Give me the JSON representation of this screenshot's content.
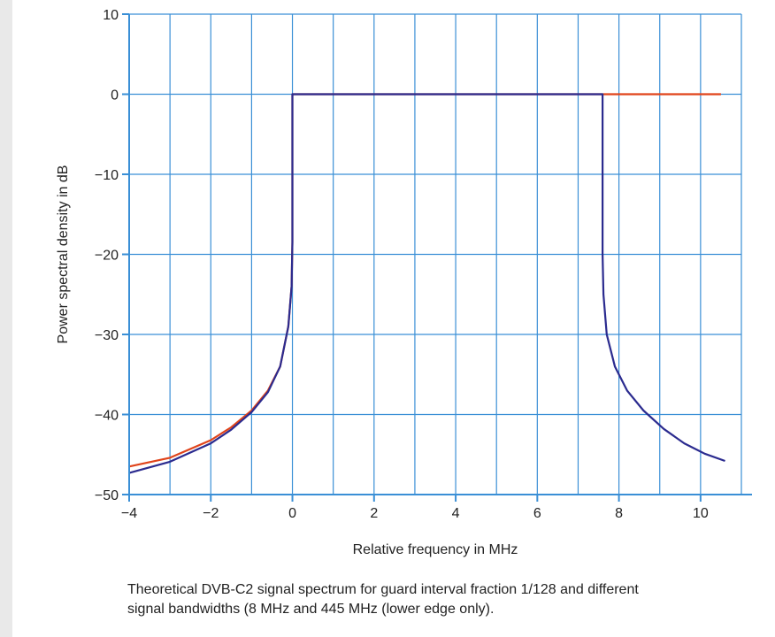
{
  "chart_data": {
    "type": "line",
    "title": "",
    "xlabel": "Relative frequency in MHz",
    "ylabel": "Power spectral density in dB",
    "xlim": [
      -4,
      11
    ],
    "ylim": [
      -50,
      10
    ],
    "xticks": [
      -4,
      -2,
      0,
      2,
      4,
      6,
      8,
      10
    ],
    "yticks": [
      -50,
      -40,
      -30,
      -20,
      -10,
      0,
      10
    ],
    "xtick_labels": [
      "−4",
      "−2",
      "0",
      "2",
      "4",
      "6",
      "8",
      "10"
    ],
    "ytick_labels": [
      "−50",
      "−40",
      "−30",
      "−20",
      "−10",
      "0",
      "10"
    ],
    "grid": true,
    "series": [
      {
        "color": "#e0441b",
        "points": [
          [
            -4,
            -46.5
          ],
          [
            -3,
            -45.4
          ],
          [
            -2,
            -43.2
          ],
          [
            -1.5,
            -41.6
          ],
          [
            -1,
            -39.5
          ],
          [
            -0.6,
            -37.0
          ],
          [
            -0.3,
            -34.0
          ],
          [
            -0.1,
            -29.0
          ],
          [
            -0.02,
            -24.0
          ],
          [
            0,
            -18.5
          ],
          [
            0,
            0
          ],
          [
            10.5,
            0
          ]
        ]
      },
      {
        "color": "#2b2b8f",
        "points": [
          [
            -4,
            -47.3
          ],
          [
            -3,
            -45.9
          ],
          [
            -2,
            -43.6
          ],
          [
            -1.5,
            -41.9
          ],
          [
            -1,
            -39.7
          ],
          [
            -0.6,
            -37.2
          ],
          [
            -0.3,
            -34.0
          ],
          [
            -0.1,
            -29.0
          ],
          [
            -0.02,
            -24.0
          ],
          [
            0,
            -18.5
          ],
          [
            0,
            0
          ],
          [
            7.6,
            0
          ],
          [
            7.6,
            -20
          ],
          [
            7.62,
            -25
          ],
          [
            7.7,
            -30
          ],
          [
            7.9,
            -34
          ],
          [
            8.2,
            -37
          ],
          [
            8.6,
            -39.5
          ],
          [
            9.1,
            -41.8
          ],
          [
            9.6,
            -43.6
          ],
          [
            10.1,
            -44.9
          ],
          [
            10.6,
            -45.8
          ]
        ]
      }
    ]
  },
  "caption": {
    "line1": "Theoretical DVB-C2 signal spectrum for guard interval fraction 1/128 and different",
    "line2": "signal bandwidths (8 MHz and 445 MHz (lower edge only)."
  }
}
